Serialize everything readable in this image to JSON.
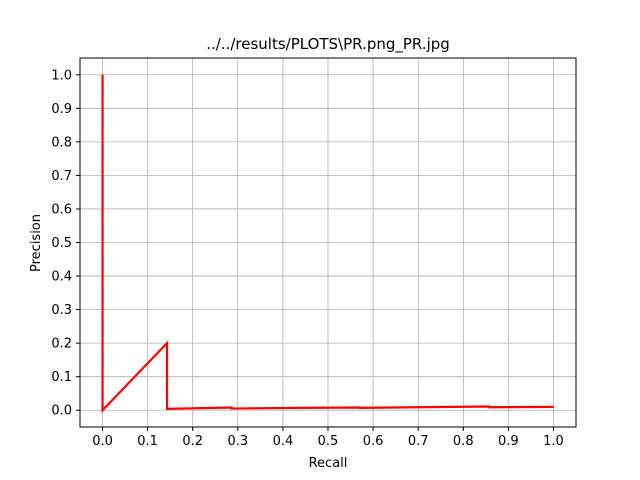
{
  "chart_data": {
    "type": "line",
    "title": "../../results/PLOTS\\PR.png_PR.jpg",
    "xlabel": "Recall",
    "ylabel": "Precision",
    "xlim": [
      -0.05,
      1.05
    ],
    "ylim": [
      -0.05,
      1.05
    ],
    "xticks": [
      0.0,
      0.1,
      0.2,
      0.3,
      0.4,
      0.5,
      0.6,
      0.7,
      0.8,
      0.9,
      1.0
    ],
    "xtick_labels": [
      "0.0",
      "0.1",
      "0.2",
      "0.3",
      "0.4",
      "0.5",
      "0.6",
      "0.7",
      "0.8",
      "0.9",
      "1.0"
    ],
    "yticks": [
      0.0,
      0.1,
      0.2,
      0.3,
      0.4,
      0.5,
      0.6,
      0.7,
      0.8,
      0.9,
      1.0
    ],
    "ytick_labels": [
      "0.0",
      "0.1",
      "0.2",
      "0.3",
      "0.4",
      "0.5",
      "0.6",
      "0.7",
      "0.8",
      "0.9",
      "1.0"
    ],
    "grid": true,
    "series": [
      {
        "color": "#ff0000",
        "x": [
          0.0,
          0.0,
          0.143,
          0.143,
          0.286,
          0.286,
          0.429,
          0.429,
          0.571,
          0.571,
          0.857,
          0.857,
          1.0
        ],
        "y": [
          1.0,
          0.0,
          0.2,
          0.004,
          0.008,
          0.005,
          0.007,
          0.007,
          0.008,
          0.007,
          0.011,
          0.009,
          0.01
        ]
      }
    ]
  }
}
